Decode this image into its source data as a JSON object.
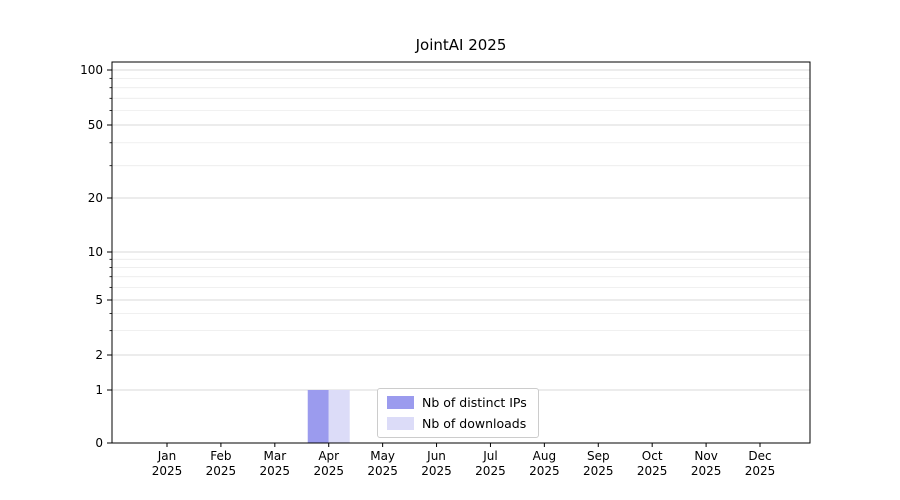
{
  "chart_data": {
    "type": "bar",
    "title": "JointAI 2025",
    "categories": [
      "Jan",
      "Feb",
      "Mar",
      "Apr",
      "May",
      "Jun",
      "Jul",
      "Aug",
      "Sep",
      "Oct",
      "Nov",
      "Dec"
    ],
    "category_year": "2025",
    "series": [
      {
        "name": "Nb of distinct IPs",
        "color": "#9b9bee",
        "values": [
          0,
          0,
          0,
          1,
          0,
          0,
          0,
          0,
          0,
          0,
          0,
          0
        ]
      },
      {
        "name": "Nb of downloads",
        "color": "#dcdcf8",
        "values": [
          0,
          0,
          0,
          1,
          0,
          0,
          0,
          0,
          0,
          0,
          0,
          0
        ]
      }
    ],
    "yscale": "symlog",
    "y_ticks": [
      0,
      1,
      2,
      5,
      10,
      20,
      50,
      100
    ],
    "y_minor_ticks": [
      3,
      4,
      6,
      7,
      8,
      9,
      30,
      40,
      60,
      70,
      80,
      90
    ],
    "ylim": [
      0,
      112
    ],
    "grid": true,
    "legend_position": "lower center",
    "axis_color": "#000000",
    "grid_major_color": "#d8d8d8",
    "grid_minor_color": "#ececec"
  }
}
